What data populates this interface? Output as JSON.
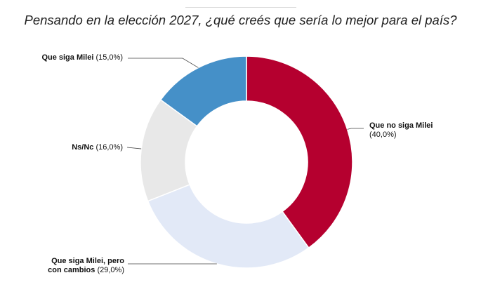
{
  "title": "Pensando en la elección 2027, ¿qué creés que sería lo mejor para el país?",
  "chart_data": {
    "type": "pie",
    "donut": true,
    "title": "Pensando en la elección 2027, ¿qué creés que sería lo mejor para el país?",
    "slices": [
      {
        "label": "Que no siga Milei",
        "value": 40.0,
        "value_label": "(40,0%)",
        "color": "#b5002f"
      },
      {
        "label": "Que siga Milei, pero con cambios",
        "value": 29.0,
        "value_label": "(29,0%)",
        "color": "#e2e9f7"
      },
      {
        "label": "Ns/Nc",
        "value": 16.0,
        "value_label": "(16,0%)",
        "color": "#e8e8e8"
      },
      {
        "label": "Que siga Milei",
        "value": 15.0,
        "value_label": "(15,0%)",
        "color": "#4590c8"
      }
    ],
    "start_angle": "12 o'clock",
    "direction": "clockwise"
  }
}
